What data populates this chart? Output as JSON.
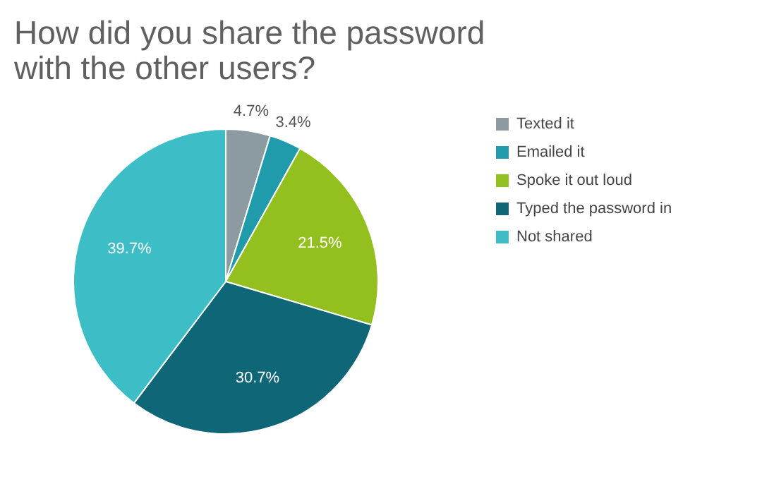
{
  "chart_data": {
    "type": "pie",
    "title": [
      "How did you share the password",
      "with the other users?"
    ],
    "categories": [
      "Texted it",
      "Emailed it",
      "Spoke it out loud",
      "Typed the password in",
      "Not shared"
    ],
    "values": [
      4.7,
      3.4,
      21.5,
      30.7,
      39.7
    ],
    "value_labels": [
      "4.7%",
      "3.4%",
      "21.5%",
      "30.7%",
      "39.7%"
    ],
    "colors": [
      "#8c9ba1",
      "#1f9bab",
      "#93c01f",
      "#0f6677",
      "#3dbdc6"
    ],
    "legend": "right"
  }
}
